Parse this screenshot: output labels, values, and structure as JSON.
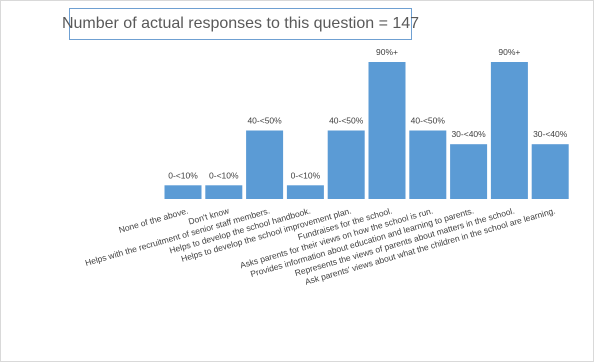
{
  "chart_data": {
    "type": "bar",
    "title": "Number of actual responses to this question = 147",
    "categories": [
      "None of the above.",
      "Don't know",
      "Helps with the recruitment of senior staff members.",
      "Helps to develop the school handbook.",
      "Helps to develop the school improvement plan.",
      "Fundraises for the school.",
      "Asks parents for their views on how the school is run.",
      "Provides information about education and learning to parents.",
      "Represents the views of parents about matters in the school.",
      "Ask parents' views about what the children in the school are learning."
    ],
    "data_labels": [
      "0-<10%",
      "0-<10%",
      "40-<50%",
      "0-<10%",
      "40-<50%",
      "90%+",
      "40-<50%",
      "30-<40%",
      "90%+",
      "30-<40%"
    ],
    "values": [
      1,
      1,
      5,
      1,
      5,
      10,
      5,
      4,
      10,
      4
    ],
    "ylim": [
      0,
      10
    ],
    "xlabel": "",
    "ylabel": "",
    "legend": false,
    "grid": false,
    "colors": {
      "bar": "#5b9bd5",
      "title_border": "#6fa0d2",
      "text": "#404040"
    }
  }
}
